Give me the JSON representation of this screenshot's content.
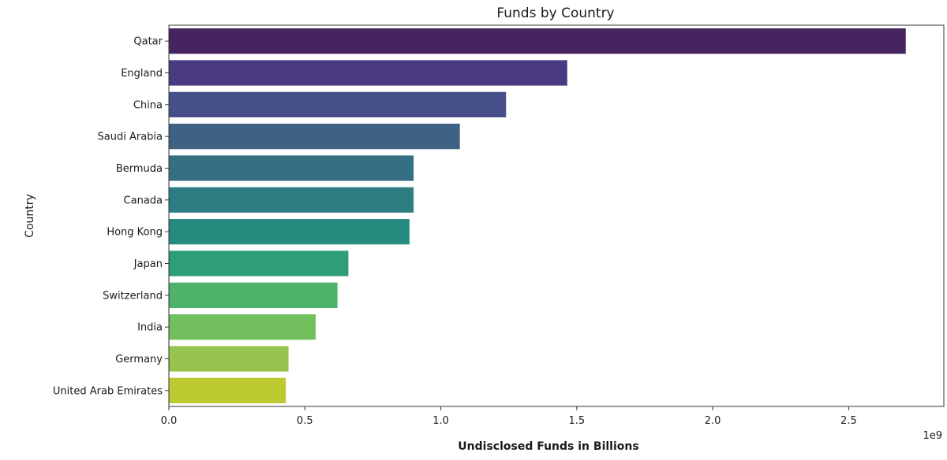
{
  "chart_data": {
    "type": "bar",
    "orientation": "horizontal",
    "title": "Funds by Country",
    "xlabel": "Undisclosed Funds in Billions",
    "ylabel": "Country",
    "x_offset_label": "1e9",
    "xlim": [
      0,
      2.85
    ],
    "x_ticks": [
      0.0,
      0.5,
      1.0,
      1.5,
      2.0,
      2.5
    ],
    "x_tick_labels": [
      "0.0",
      "0.5",
      "1.0",
      "1.5",
      "2.0",
      "2.5"
    ],
    "grid": false,
    "legend": "none",
    "categories": [
      "Qatar",
      "England",
      "China",
      "Saudi Arabia",
      "Bermuda",
      "Canada",
      "Hong Kong",
      "Japan",
      "Switzerland",
      "India",
      "Germany",
      "United Arab Emirates"
    ],
    "values": [
      2.71,
      1.465,
      1.24,
      1.07,
      0.9,
      0.9,
      0.885,
      0.66,
      0.62,
      0.54,
      0.44,
      0.43
    ],
    "colors": [
      "#46245f",
      "#4a3a82",
      "#474f8a",
      "#3e6283",
      "#356f82",
      "#2d7d82",
      "#268b7f",
      "#2f9d75",
      "#4fb26a",
      "#72c05d",
      "#97c44e",
      "#bdc931"
    ]
  }
}
